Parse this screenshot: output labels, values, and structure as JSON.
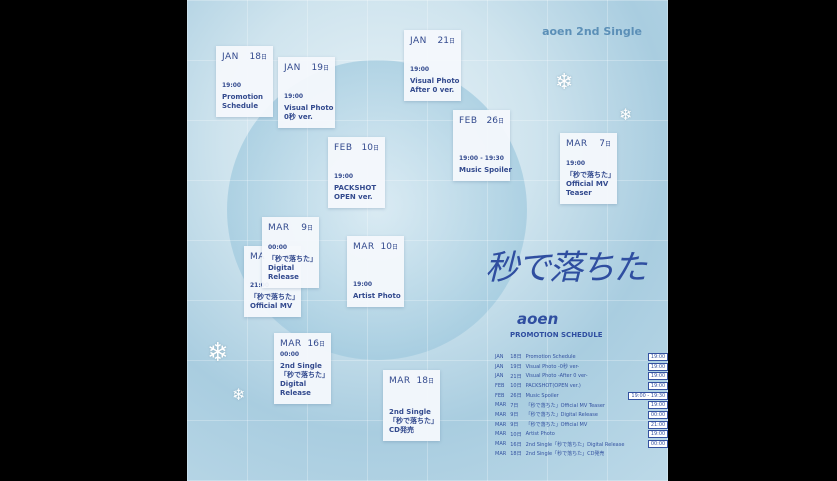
{
  "title": "aoen 2nd Single",
  "logo": {
    "song": "秒で落ちた",
    "artist": "aoen",
    "subtitle": "PROMOTION SCHEDULE"
  },
  "cards": [
    {
      "month": "JAN",
      "day": "18",
      "time": "19:00",
      "label": "Promotion\nSchedule"
    },
    {
      "month": "JAN",
      "day": "19",
      "time": "19:00",
      "label": "Visual Photo\n0秒 ver."
    },
    {
      "month": "JAN",
      "day": "21",
      "time": "19:00",
      "label": "Visual Photo\nAfter 0 ver."
    },
    {
      "month": "FEB",
      "day": "10",
      "time": "19:00",
      "label": "PACKSHOT\nOPEN ver."
    },
    {
      "month": "FEB",
      "day": "26",
      "time": "19:00 - 19:30",
      "label": "Music Spoiler"
    },
    {
      "month": "MAR",
      "day": "7",
      "time": "19:00",
      "label": "「秒で落ちた」\nOfficial MV\nTeaser"
    },
    {
      "month": "MA",
      "day": "",
      "time": "21:00",
      "label": "「秒で落ちた」\nOfficial MV"
    },
    {
      "month": "MAR",
      "day": "9",
      "time": "00:00",
      "label": "「秒で落ちた」\nDigital\nRelease"
    },
    {
      "month": "MAR",
      "day": "10",
      "time": "19:00",
      "label": "Artist Photo"
    },
    {
      "month": "MAR",
      "day": "16",
      "time": "00:00",
      "label": "2nd Single\n「秒で落ちた」\nDigital\nRelease"
    },
    {
      "month": "MAR",
      "day": "18",
      "time": "",
      "label": "2nd Single\n「秒で落ちた」\nCD発売"
    }
  ],
  "day_suffix": "日",
  "schedule": [
    {
      "month": "JAN",
      "day": "18日",
      "event": "Promotion Schedule",
      "time": "19:00"
    },
    {
      "month": "JAN",
      "day": "19日",
      "event": "Visual Photo -0秒 ver-",
      "time": "19:00"
    },
    {
      "month": "JAN",
      "day": "21日",
      "event": "Visual Photo -After 0 ver-",
      "time": "19:00"
    },
    {
      "month": "FEB",
      "day": "10日",
      "event": "PACKSHOT(OPEN ver.)",
      "time": "19:00"
    },
    {
      "month": "FEB",
      "day": "26日",
      "event": "Music Spoiler",
      "time": "19:00 - 19:30"
    },
    {
      "month": "MAR",
      "day": "7日",
      "event": "「秒で落ちた」Official MV Teaser",
      "time": "19:00"
    },
    {
      "month": "MAR",
      "day": "9日",
      "event": "「秒で落ちた」Digital Release",
      "time": "00:00"
    },
    {
      "month": "MAR",
      "day": "9日",
      "event": "「秒で落ちた」Official MV",
      "time": "21:00"
    },
    {
      "month": "MAR",
      "day": "10日",
      "event": "Artist Photo",
      "time": "19:00"
    },
    {
      "month": "MAR",
      "day": "16日",
      "event": "2nd Single「秒で落ちた」Digital Release",
      "time": "00:00"
    },
    {
      "month": "MAR",
      "day": "18日",
      "event": "2nd Single「秒で落ちた」CD発売",
      "time": ""
    }
  ]
}
